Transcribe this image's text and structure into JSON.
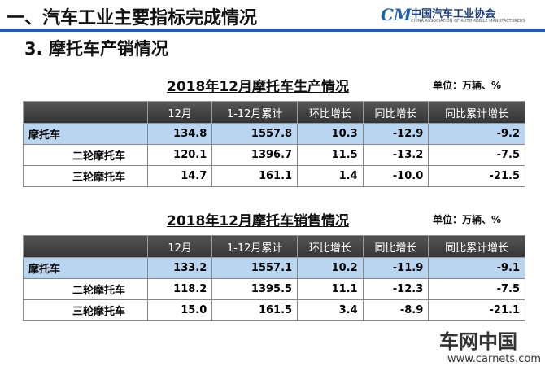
{
  "header": {
    "title": "一、汽车工业主要指标完成情况",
    "logo_name": "中国汽车工业协会",
    "logo_subtitle": "CHINA ASSOCIATION OF AUTOMOBILE MANUFACTURERS"
  },
  "section": "3. 摩托车产销情况",
  "tables": [
    {
      "title": "2018年12月摩托车生产情况",
      "unit": "单位：万辆、%",
      "columns": [
        "12月",
        "1-12月累计",
        "环比增长",
        "同比增长",
        "同比累计增长"
      ],
      "rows": [
        {
          "label": "摩托车",
          "cells": [
            "134.8",
            "1557.8",
            "10.3",
            "-12.9",
            "-9.2"
          ]
        },
        {
          "label": "二轮摩托车",
          "cells": [
            "120.1",
            "1396.7",
            "11.5",
            "-13.2",
            "-7.5"
          ]
        },
        {
          "label": "三轮摩托车",
          "cells": [
            "14.7",
            "161.1",
            "1.4",
            "-10.0",
            "-21.5"
          ]
        }
      ]
    },
    {
      "title": "2018年12月摩托车销售情况",
      "unit": "单位：万辆、%",
      "columns": [
        "12月",
        "1-12月累计",
        "环比增长",
        "同比增长",
        "同比累计增长"
      ],
      "rows": [
        {
          "label": "摩托车",
          "cells": [
            "133.2",
            "1557.1",
            "10.2",
            "-11.9",
            "-9.1"
          ]
        },
        {
          "label": "二轮摩托车",
          "cells": [
            "118.2",
            "1395.5",
            "11.1",
            "-12.3",
            "-7.5"
          ]
        },
        {
          "label": "三轮摩托车",
          "cells": [
            "15.0",
            "161.5",
            "3.4",
            "-8.9",
            "-21.1"
          ]
        }
      ]
    }
  ],
  "watermark": {
    "brand": "车网中国",
    "url": "www.carnets.com"
  }
}
